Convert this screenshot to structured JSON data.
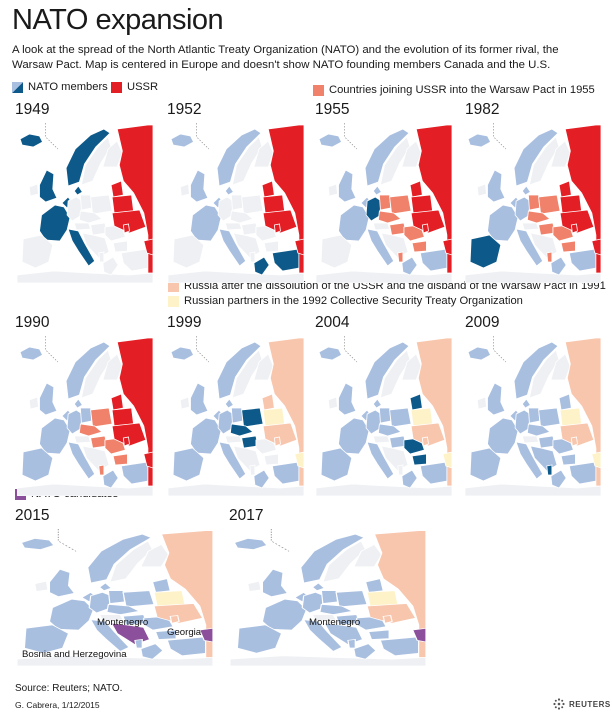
{
  "title": "NATO expansion",
  "subtitle": "A look at the spread of the North Atlantic Treaty Organization (NATO) and the evolution of its former rival, the Warsaw Pact. Map is centered in Europe and doesn't show NATO founding members Canada and the U.S.",
  "colors": {
    "nato_founding": "#0d5a8a",
    "nato_member": "#a9bfe0",
    "ussr": "#e31e24",
    "warsaw_pact": "#f0826b",
    "russia_1991": "#f8c6ad",
    "csto": "#fef3c8",
    "candidate": "#8c4f9c",
    "land_neutral": "#eef0f3",
    "water": "#ffffff",
    "border": "#ffffff"
  },
  "legend": {
    "nato_members": "NATO members",
    "ussr": "USSR",
    "warsaw_pact": "Countries joining USSR into the Warsaw Pact in 1955",
    "russia_1991": "Russia after the dissolution of the USSR and the disband of the Warsaw Pact in 1991",
    "csto": "Russian partners in the 1992 Collective Security Treaty Organization",
    "candidates": "NATO candidates"
  },
  "maps": [
    {
      "year": "1949"
    },
    {
      "year": "1952"
    },
    {
      "year": "1955"
    },
    {
      "year": "1982"
    },
    {
      "year": "1990"
    },
    {
      "year": "1999"
    },
    {
      "year": "2004"
    },
    {
      "year": "2009"
    },
    {
      "year": "2015",
      "labels": [
        "Montenegro",
        "Georgia",
        "Bosnia and Herzegovina"
      ]
    },
    {
      "year": "2017",
      "labels": [
        "Montenegro"
      ]
    }
  ],
  "source": "Source: Reuters; NATO.",
  "credit": "G. Cabrera, 1/12/2015",
  "brand": "REUTERS"
}
